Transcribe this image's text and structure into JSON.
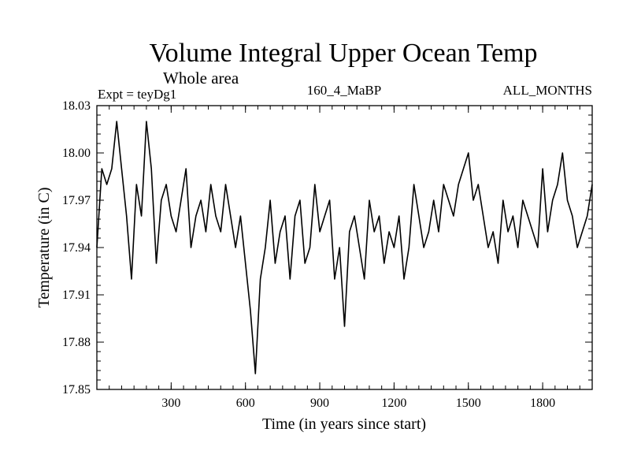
{
  "chart_data": {
    "type": "line",
    "title": "Volume Integral Upper Ocean Temp",
    "subtitle": "Whole area",
    "experiment": "Expt = teyDg1",
    "period": "160_4_MaBP",
    "months": "ALL_MONTHS",
    "xlabel": "Time (in years since start)",
    "ylabel": "Temperature (in C)",
    "xlim": [
      0,
      2000
    ],
    "ylim": [
      17.85,
      18.03
    ],
    "xticks": [
      300,
      600,
      900,
      1200,
      1500,
      1800
    ],
    "yticks": [
      17.85,
      17.88,
      17.91,
      17.94,
      17.97,
      18.0,
      18.03
    ],
    "ytick_labels": [
      "17.85",
      "17.88",
      "17.91",
      "17.94",
      "17.97",
      "18.00",
      "18.03"
    ],
    "xtick_labels": [
      "300",
      "600",
      "900",
      "1200",
      "1500",
      "1800"
    ],
    "grid": false,
    "series": [
      {
        "name": "Temperature",
        "x": [
          0,
          20,
          40,
          60,
          80,
          100,
          120,
          140,
          160,
          180,
          200,
          220,
          240,
          260,
          280,
          300,
          320,
          340,
          360,
          380,
          400,
          420,
          440,
          460,
          480,
          500,
          520,
          540,
          560,
          580,
          600,
          620,
          640,
          660,
          680,
          700,
          720,
          740,
          760,
          780,
          800,
          820,
          840,
          860,
          880,
          900,
          920,
          940,
          960,
          980,
          1000,
          1020,
          1040,
          1060,
          1080,
          1100,
          1120,
          1140,
          1160,
          1180,
          1200,
          1220,
          1240,
          1260,
          1280,
          1300,
          1320,
          1340,
          1360,
          1380,
          1400,
          1420,
          1440,
          1460,
          1480,
          1500,
          1520,
          1540,
          1560,
          1580,
          1600,
          1620,
          1640,
          1660,
          1680,
          1700,
          1720,
          1780,
          1800,
          1820,
          1840,
          1860,
          1880,
          1900,
          1920,
          1940,
          1960,
          1980,
          2000
        ],
        "values": [
          17.94,
          17.99,
          17.98,
          17.99,
          18.02,
          17.99,
          17.96,
          17.92,
          17.98,
          17.96,
          18.02,
          17.99,
          17.93,
          17.97,
          17.98,
          17.96,
          17.95,
          17.97,
          17.99,
          17.94,
          17.96,
          17.97,
          17.95,
          17.98,
          17.96,
          17.95,
          17.98,
          17.96,
          17.94,
          17.96,
          17.93,
          17.9,
          17.86,
          17.92,
          17.94,
          17.97,
          17.93,
          17.95,
          17.96,
          17.92,
          17.96,
          17.97,
          17.93,
          17.94,
          17.98,
          17.95,
          17.96,
          17.97,
          17.92,
          17.94,
          17.89,
          17.95,
          17.96,
          17.94,
          17.92,
          17.97,
          17.95,
          17.96,
          17.93,
          17.95,
          17.94,
          17.96,
          17.92,
          17.94,
          17.98,
          17.96,
          17.94,
          17.95,
          17.97,
          17.95,
          17.98,
          17.97,
          17.96,
          17.98,
          17.99,
          18.0,
          17.97,
          17.98,
          17.96,
          17.94,
          17.95,
          17.93,
          17.97,
          17.95,
          17.96,
          17.94,
          17.97,
          17.94,
          17.99,
          17.95,
          17.97,
          17.98,
          18.0,
          17.97,
          17.96,
          17.94,
          17.95,
          17.96,
          17.98
        ]
      }
    ]
  }
}
